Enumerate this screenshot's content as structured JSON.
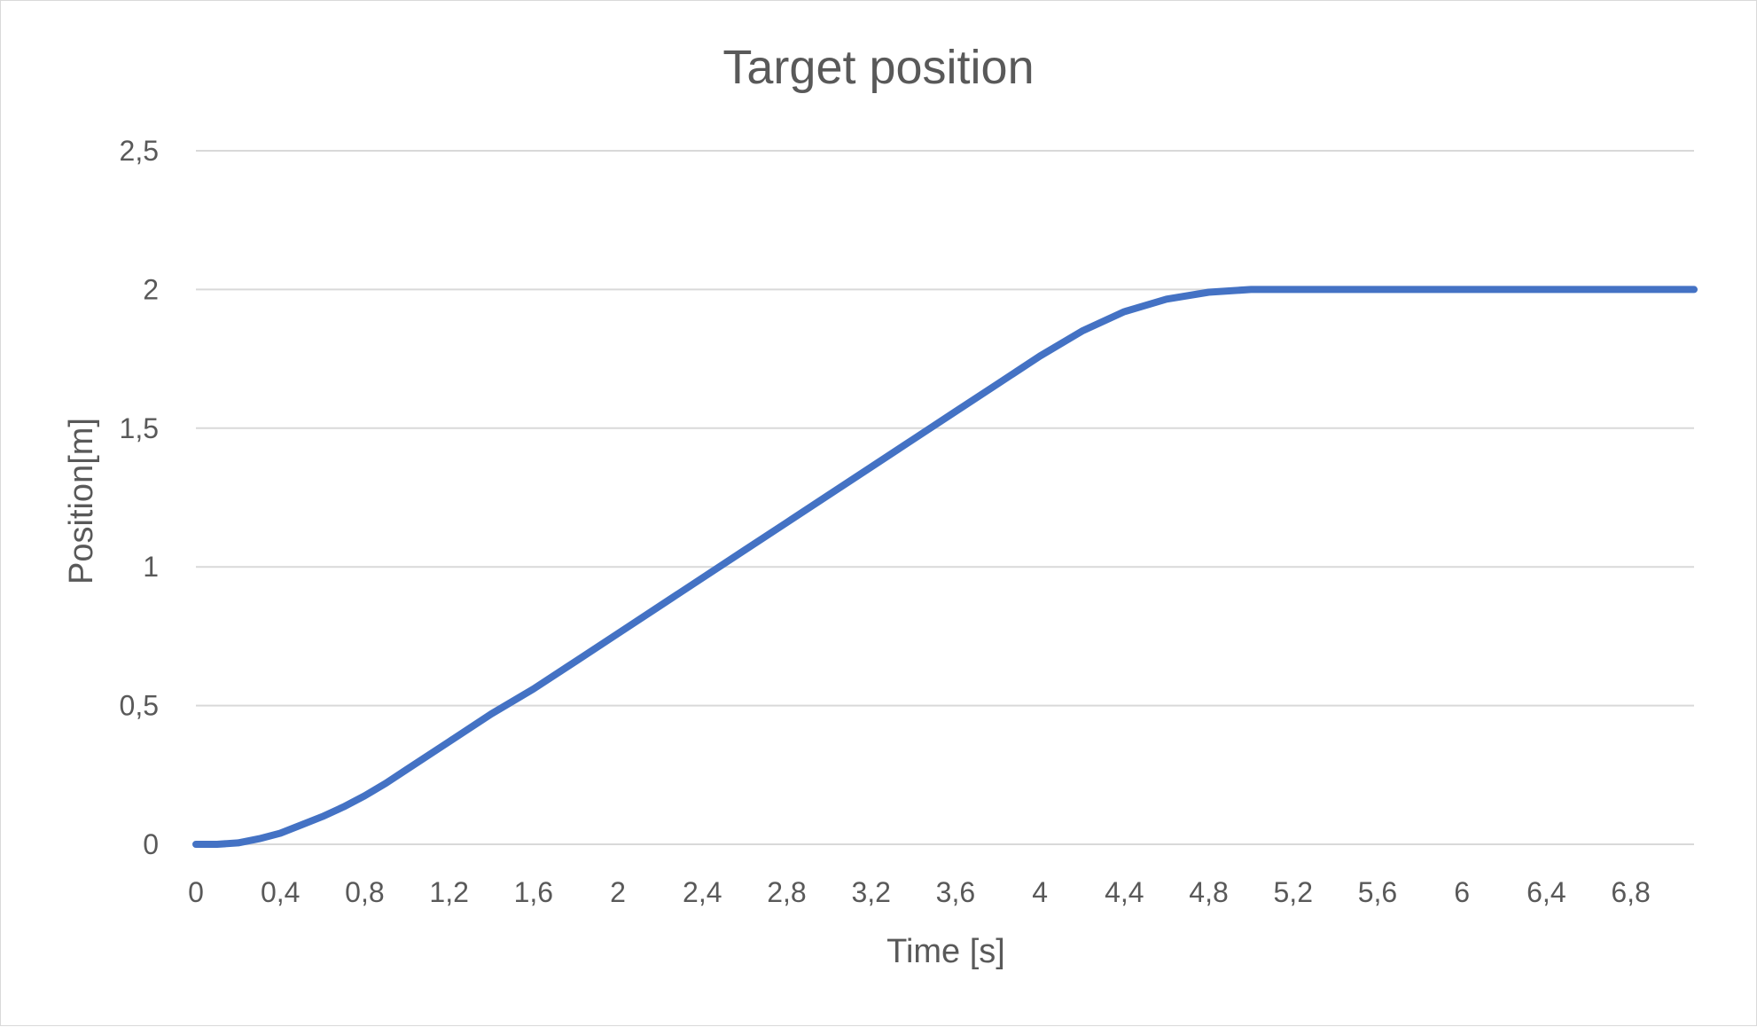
{
  "chart_data": {
    "type": "line",
    "title": "Target position",
    "xlabel": "Time [s]",
    "ylabel": "Position[m]",
    "xlim": [
      0,
      7.1
    ],
    "ylim": [
      0,
      2.5
    ],
    "x_ticks": [
      0,
      0.4,
      0.8,
      1.2,
      1.6,
      2,
      2.4,
      2.8,
      3.2,
      3.6,
      4,
      4.4,
      4.8,
      5.2,
      5.6,
      6,
      6.4,
      6.8
    ],
    "x_tick_labels": [
      "0",
      "0,4",
      "0,8",
      "1,2",
      "1,6",
      "2",
      "2,4",
      "2,8",
      "3,2",
      "3,6",
      "4",
      "4,4",
      "4,8",
      "5,2",
      "5,6",
      "6",
      "6,4",
      "6,8"
    ],
    "y_ticks": [
      0,
      0.5,
      1,
      1.5,
      2,
      2.5
    ],
    "y_tick_labels": [
      "0",
      "0,5",
      "1",
      "1,5",
      "2",
      "2,5"
    ],
    "grid": true,
    "legend": "none",
    "series": [
      {
        "color": "#4472c4",
        "x": [
          0,
          0.1,
          0.2,
          0.3,
          0.4,
          0.5,
          0.6,
          0.7,
          0.8,
          0.9,
          1.0,
          1.2,
          1.4,
          1.6,
          1.8,
          2.0,
          2.2,
          2.4,
          2.6,
          2.8,
          3.0,
          3.2,
          3.4,
          3.6,
          3.8,
          4.0,
          4.2,
          4.4,
          4.6,
          4.8,
          5.0,
          5.2,
          5.6,
          6.0,
          6.4,
          6.8,
          7.1
        ],
        "y": [
          0,
          0,
          0.005,
          0.02,
          0.04,
          0.07,
          0.1,
          0.135,
          0.175,
          0.22,
          0.27,
          0.37,
          0.47,
          0.56,
          0.66,
          0.76,
          0.86,
          0.96,
          1.06,
          1.16,
          1.26,
          1.36,
          1.46,
          1.56,
          1.66,
          1.76,
          1.85,
          1.92,
          1.965,
          1.99,
          2,
          2,
          2,
          2,
          2,
          2,
          2
        ]
      }
    ]
  }
}
